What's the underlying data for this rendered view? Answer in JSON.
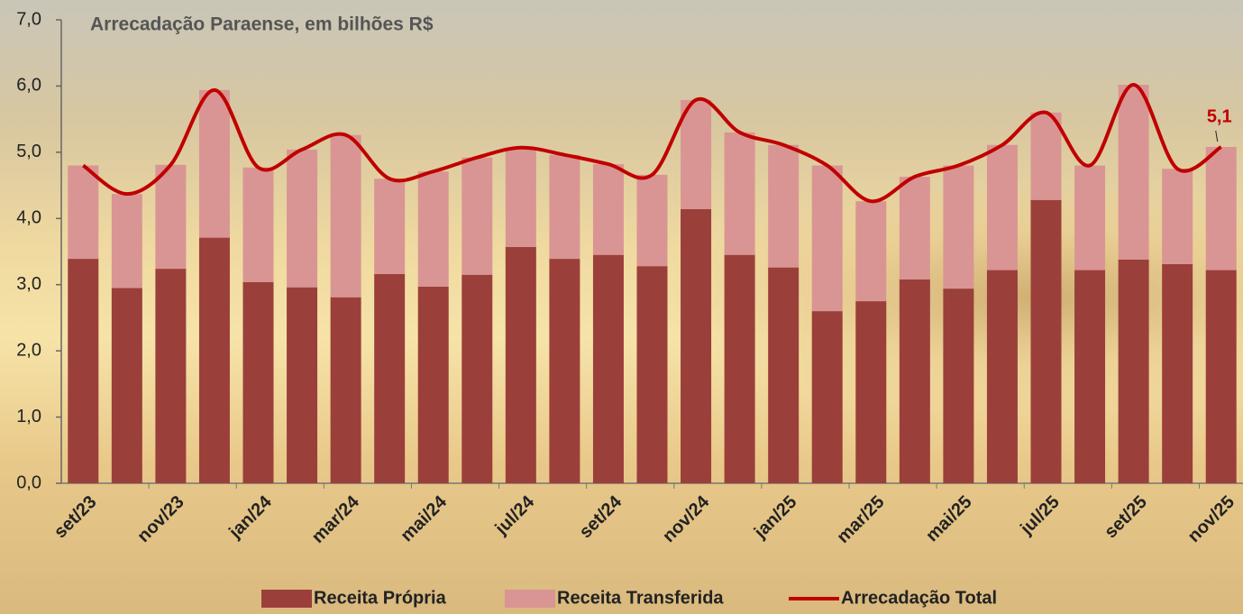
{
  "chart_data": {
    "type": "bar-line",
    "title": "Arrecadação Paraense, em bilhões R$",
    "categories": [
      "set/23",
      null,
      "nov/23",
      null,
      "jan/24",
      null,
      "mar/24",
      null,
      "mai/24",
      null,
      "jul/24",
      null,
      "set/24",
      null,
      "nov/24",
      null,
      "jan/25",
      null,
      "mar/25",
      null,
      "mai/25",
      null,
      "jul/25",
      null,
      "set/25",
      null,
      "nov/25"
    ],
    "series": [
      {
        "name": "Receita Própria",
        "type": "bar",
        "stacked": true,
        "color": "#9b3f3b",
        "values": [
          3.39,
          2.95,
          3.24,
          3.71,
          3.04,
          2.96,
          2.81,
          3.16,
          2.97,
          3.15,
          3.57,
          3.39,
          3.45,
          3.28,
          4.14,
          3.45,
          3.26,
          2.6,
          2.75,
          3.08,
          2.94,
          3.22,
          4.28,
          3.22,
          3.38,
          3.31,
          3.22
        ]
      },
      {
        "name": "Receita Transferida",
        "type": "bar",
        "stacked": true,
        "color": "#d99593",
        "values": [
          1.41,
          1.42,
          1.57,
          2.23,
          1.73,
          2.08,
          2.45,
          1.44,
          1.74,
          1.77,
          1.5,
          1.57,
          1.37,
          1.38,
          1.65,
          1.85,
          1.85,
          2.2,
          1.51,
          1.55,
          1.86,
          1.89,
          1.32,
          1.58,
          2.64,
          1.44,
          1.86
        ]
      },
      {
        "name": "Arrecadação Total",
        "type": "line",
        "color": "#c00000",
        "values": [
          4.8,
          4.37,
          4.81,
          5.94,
          4.77,
          5.04,
          5.26,
          4.6,
          4.71,
          4.92,
          5.07,
          4.96,
          4.82,
          4.66,
          5.79,
          5.3,
          5.11,
          4.8,
          4.26,
          4.63,
          4.8,
          5.11,
          5.6,
          4.8,
          6.02,
          4.75,
          5.08
        ],
        "value_labels": [
          null,
          null,
          null,
          null,
          null,
          null,
          null,
          null,
          null,
          null,
          null,
          null,
          null,
          null,
          null,
          null,
          null,
          null,
          null,
          null,
          null,
          null,
          null,
          null,
          null,
          null,
          "5,1"
        ]
      }
    ],
    "ylim": [
      0,
      7
    ],
    "yticks": [
      {
        "value": 0,
        "label": "0,0"
      },
      {
        "value": 1,
        "label": "1,0"
      },
      {
        "value": 2,
        "label": "2,0"
      },
      {
        "value": 3,
        "label": "3,0"
      },
      {
        "value": 4,
        "label": "4,0"
      },
      {
        "value": 5,
        "label": "5,0"
      },
      {
        "value": 6,
        "label": "6,0"
      },
      {
        "value": 7,
        "label": "7,0"
      }
    ],
    "legend": "bottom"
  }
}
